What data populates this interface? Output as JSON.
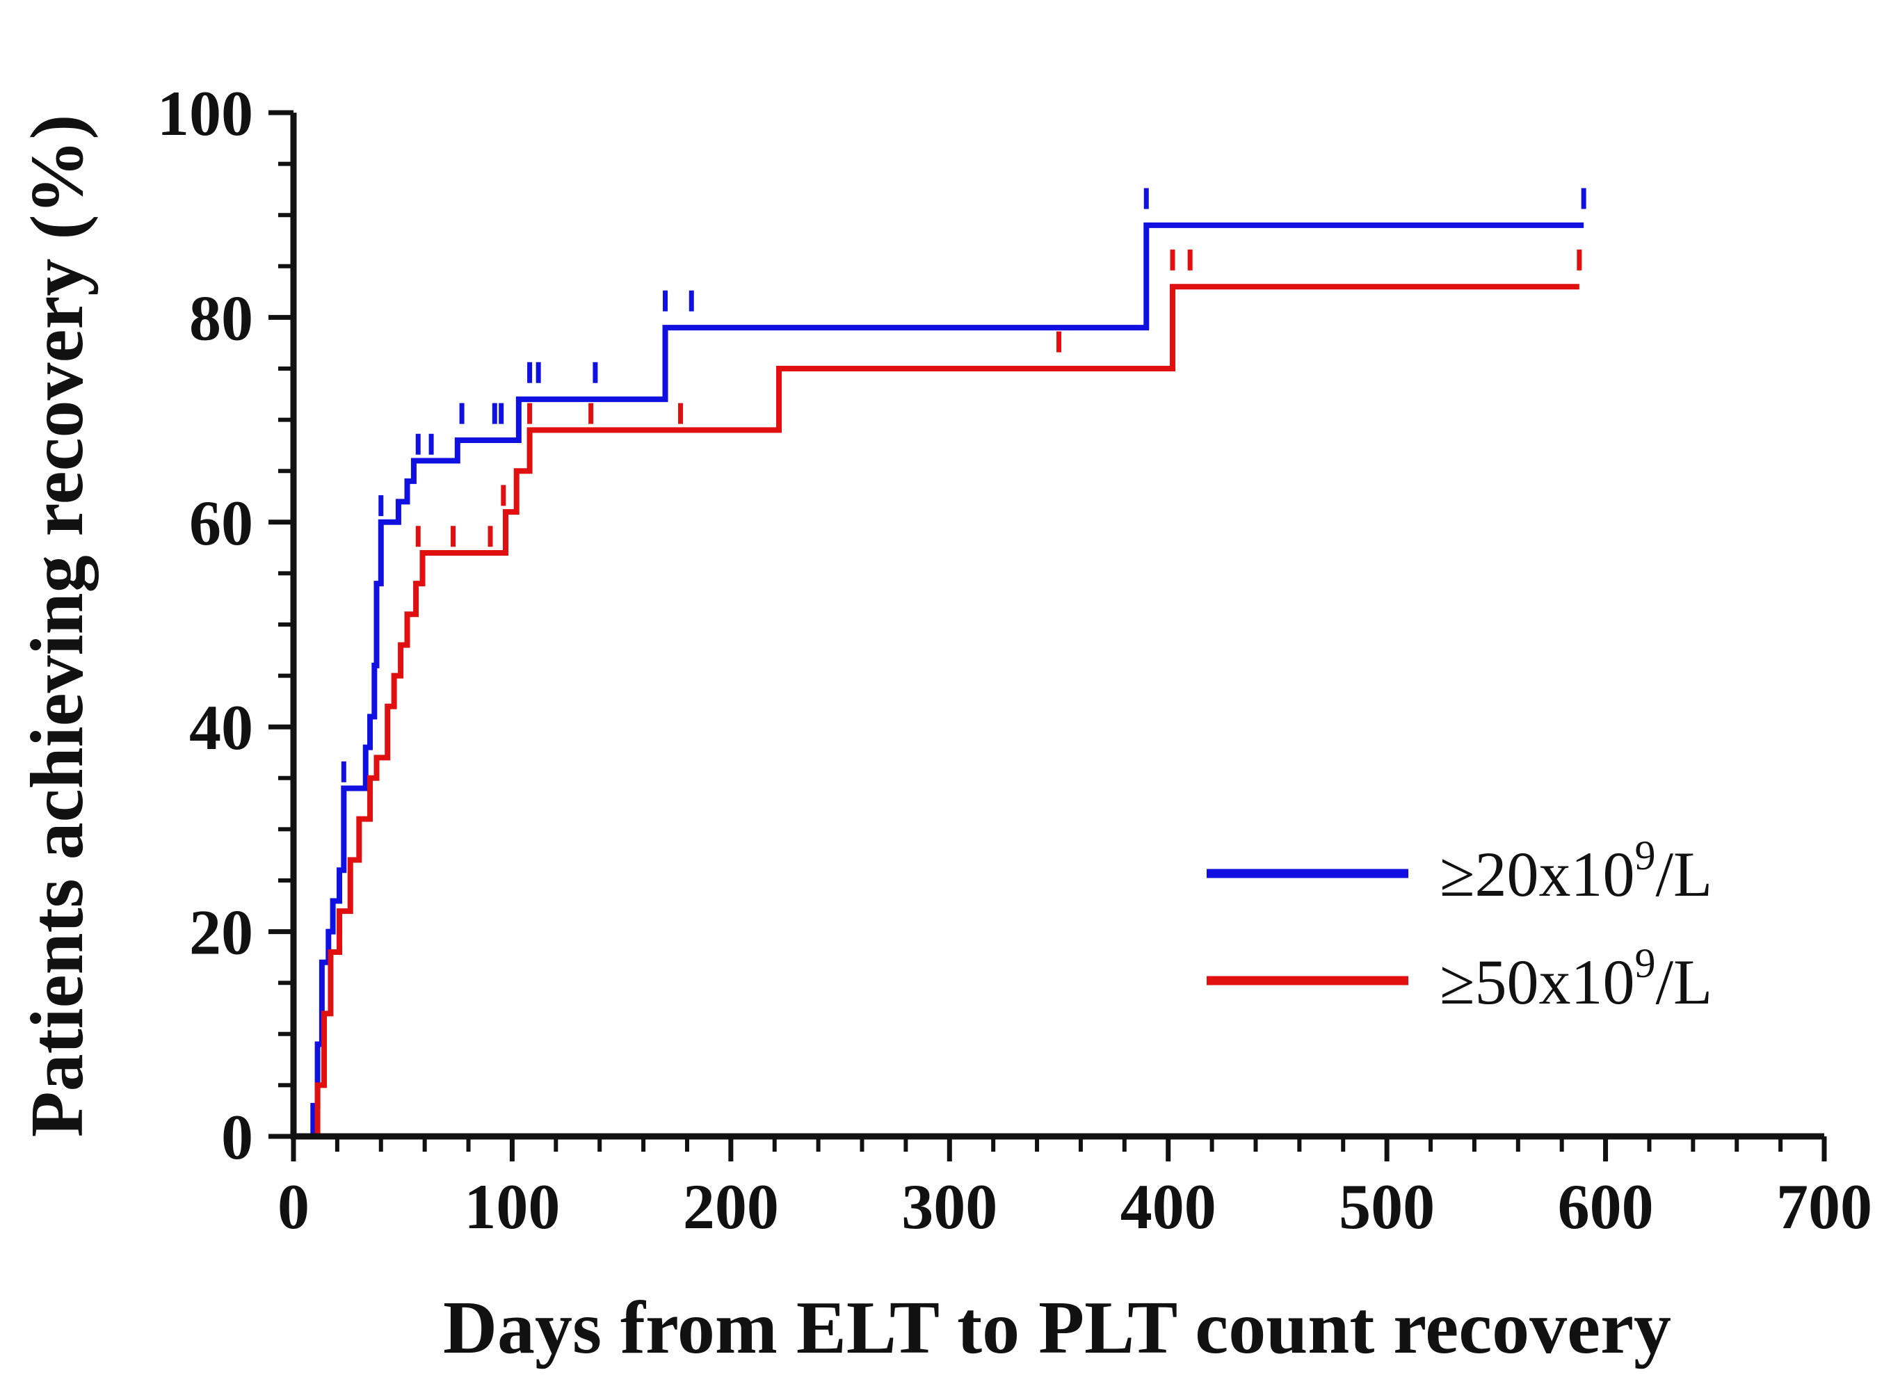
{
  "chart_data": {
    "type": "line",
    "subtype": "kaplan-meier-step",
    "xlabel": "Days from ELT to PLT count recovery",
    "ylabel": "Patients achieving recovery (%)",
    "xlim": [
      0,
      700
    ],
    "ylim": [
      0,
      100
    ],
    "xticks": [
      0,
      100,
      200,
      300,
      400,
      500,
      600,
      700
    ],
    "yticks": [
      0,
      20,
      40,
      60,
      80,
      100
    ],
    "grid": false,
    "legend_position": "right",
    "series": [
      {
        "name": "≥20x10⁹/L",
        "legend_main": "≥20x10",
        "legend_sup": "9",
        "legend_tail": "/L",
        "color": "#1010e0",
        "steps": [
          [
            0,
            0
          ],
          [
            7,
            0
          ],
          [
            9,
            3
          ],
          [
            11,
            9
          ],
          [
            13,
            17
          ],
          [
            16,
            20
          ],
          [
            18,
            23
          ],
          [
            21,
            26
          ],
          [
            23,
            34
          ],
          [
            33,
            38
          ],
          [
            35,
            41
          ],
          [
            37,
            46
          ],
          [
            38,
            54
          ],
          [
            40,
            60
          ],
          [
            48,
            62
          ],
          [
            52,
            64
          ],
          [
            55,
            66
          ],
          [
            75,
            68
          ],
          [
            103,
            72
          ],
          [
            170,
            79
          ],
          [
            390,
            89
          ],
          [
            590,
            89
          ]
        ],
        "censored": [
          [
            23,
            35
          ],
          [
            40,
            61
          ],
          [
            57,
            67
          ],
          [
            63,
            67
          ],
          [
            77,
            70
          ],
          [
            92,
            70
          ],
          [
            95,
            70
          ],
          [
            108,
            74
          ],
          [
            112,
            74
          ],
          [
            138,
            74
          ],
          [
            170,
            81
          ],
          [
            182,
            81
          ],
          [
            390,
            91
          ],
          [
            590,
            91
          ]
        ]
      },
      {
        "name": "≥50x10⁹/L",
        "legend_main": "≥50x10",
        "legend_sup": "9",
        "legend_tail": "/L",
        "color": "#e01010",
        "steps": [
          [
            0,
            0
          ],
          [
            8,
            0
          ],
          [
            11,
            5
          ],
          [
            14,
            12
          ],
          [
            17,
            18
          ],
          [
            21,
            22
          ],
          [
            26,
            27
          ],
          [
            30,
            31
          ],
          [
            35,
            35
          ],
          [
            38,
            37
          ],
          [
            43,
            42
          ],
          [
            46,
            45
          ],
          [
            49,
            48
          ],
          [
            52,
            51
          ],
          [
            56,
            54
          ],
          [
            59,
            57
          ],
          [
            97,
            61
          ],
          [
            102,
            65
          ],
          [
            108,
            69
          ],
          [
            222,
            75
          ],
          [
            402,
            83
          ],
          [
            588,
            83
          ]
        ],
        "censored": [
          [
            57,
            58
          ],
          [
            73,
            58
          ],
          [
            90,
            58
          ],
          [
            96,
            62
          ],
          [
            108,
            70
          ],
          [
            136,
            70
          ],
          [
            177,
            70
          ],
          [
            350,
            77
          ],
          [
            402,
            85
          ],
          [
            410,
            85
          ],
          [
            588,
            85
          ]
        ]
      }
    ]
  }
}
